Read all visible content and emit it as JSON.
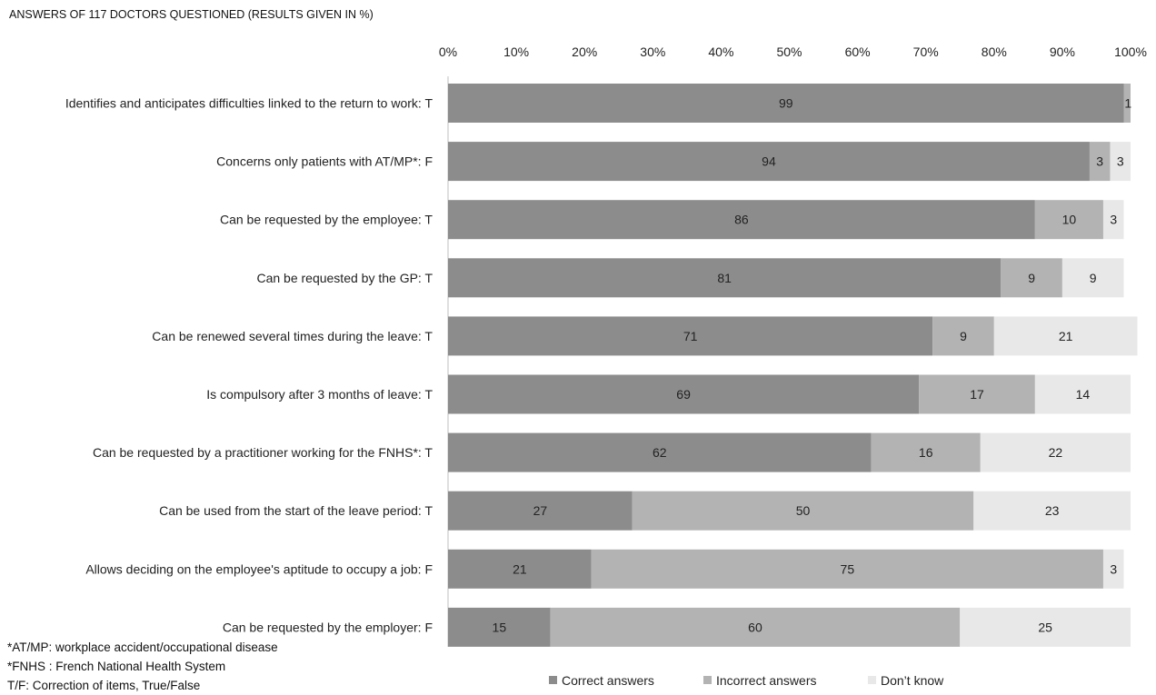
{
  "chart_data": {
    "type": "bar",
    "orientation": "horizontal",
    "stacked": true,
    "title": "ANSWERS OF 117 DOCTORS QUESTIONED (RESULTS GIVEN IN %)",
    "x_ticks": [
      "0%",
      "10%",
      "20%",
      "30%",
      "40%",
      "50%",
      "60%",
      "70%",
      "80%",
      "90%",
      "100%"
    ],
    "xlim": [
      0,
      100
    ],
    "grid": false,
    "legend_position": "bottom",
    "categories": [
      "Identifies and anticipates difficulties linked to the return to work: T",
      "Concerns only patients with AT/MP*: F",
      "Can be requested by the employee: T",
      "Can be requested by the GP: T",
      "Can be renewed several times during the leave: T",
      "Is compulsory after 3 months of leave: T",
      "Can be requested by a practitioner working for the FNHS*: T",
      "Can be used from the start of the leave period: T",
      "Allows deciding on the employee's aptitude to occupy a job: F",
      "Can be requested by the employer: F"
    ],
    "series": [
      {
        "name": "Correct answers",
        "color": "#8c8c8c",
        "values": [
          99,
          94,
          86,
          81,
          71,
          69,
          62,
          27,
          21,
          15
        ]
      },
      {
        "name": "Incorrect answers",
        "color": "#b3b3b3",
        "values": [
          1,
          3,
          10,
          9,
          9,
          17,
          16,
          50,
          75,
          60
        ]
      },
      {
        "name": "Don’t know",
        "color": "#e8e8e8",
        "values": [
          0,
          3,
          3,
          9,
          21,
          14,
          22,
          23,
          3,
          25
        ]
      }
    ]
  },
  "notes": [
    "*AT/MP: workplace accident/occupational disease",
    "*FNHS : French National Health System",
    "T/F: Correction of items, True/False"
  ]
}
